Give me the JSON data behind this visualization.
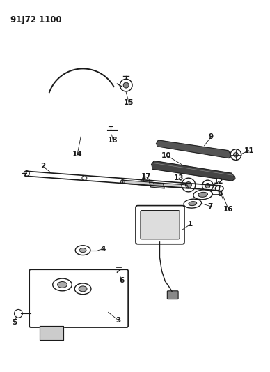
{
  "title": "91J72 1100",
  "bg_color": "#ffffff",
  "line_color": "#1a1a1a",
  "figsize": [
    3.88,
    5.33
  ],
  "dpi": 100
}
